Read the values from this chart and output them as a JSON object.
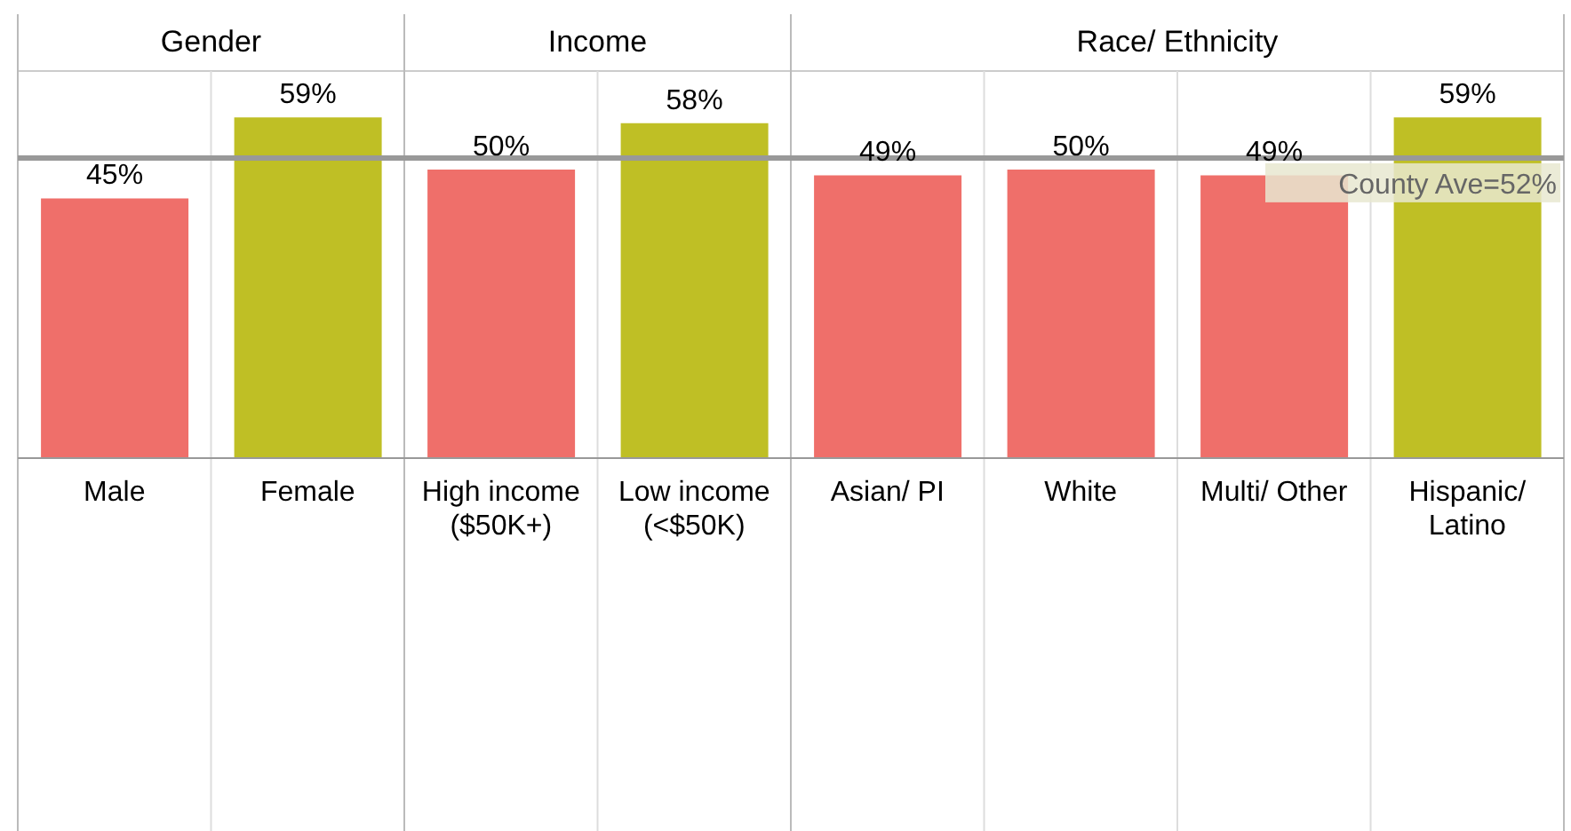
{
  "chart_data": {
    "type": "bar",
    "categories": [
      "Male",
      "Female",
      "High income ($50K+)",
      "Low income (<$50K)",
      "Asian/ PI",
      "White",
      "Multi/ Other",
      "Hispanic/ Latino"
    ],
    "values": [
      45,
      59,
      50,
      58,
      49,
      50,
      49,
      59
    ],
    "value_labels": [
      "45%",
      "59%",
      "50%",
      "58%",
      "49%",
      "50%",
      "49%",
      "59%"
    ],
    "colors": [
      "#ef6f6a",
      "#bfbf25",
      "#ef6f6a",
      "#bfbf25",
      "#ef6f6a",
      "#ef6f6a",
      "#ef6f6a",
      "#bfbf25"
    ],
    "ref_lines": [
      {
        "axis": "y",
        "value": 52,
        "label": "County Ave=52%",
        "color": "#999999"
      }
    ],
    "annotations": [
      "Gender",
      "Income",
      "Race/ Ethnicity"
    ]
  }
}
